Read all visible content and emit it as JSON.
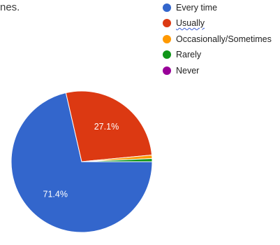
{
  "clipped_text": "nes.",
  "chart_data": {
    "type": "pie",
    "legend_position": "top-right",
    "slices": [
      {
        "label": "Every time",
        "value": 71.4,
        "display": "71.4%",
        "color": "#3366cc"
      },
      {
        "label": "Usually",
        "value": 27.1,
        "display": "27.1%",
        "color": "#dc3912"
      },
      {
        "label": "Occasionally/Sometimes",
        "value": 0.8,
        "display": "",
        "color": "#ff9900"
      },
      {
        "label": "Rarely",
        "value": 0.7,
        "display": "",
        "color": "#109618"
      },
      {
        "label": "Never",
        "value": 0.0,
        "display": "",
        "color": "#990099"
      }
    ]
  }
}
